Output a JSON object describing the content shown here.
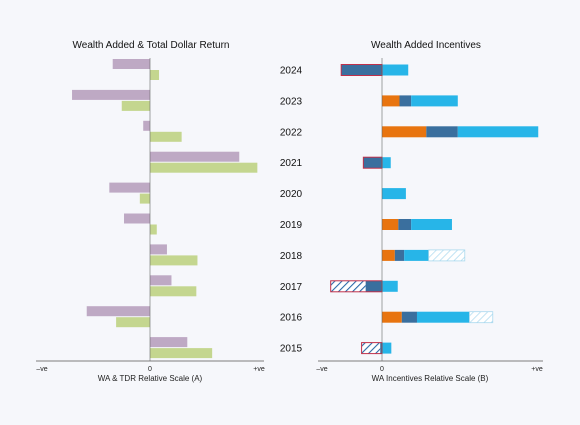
{
  "years": [
    "2024",
    "2023",
    "2022",
    "2021",
    "2020",
    "2019",
    "2018",
    "2017",
    "2016",
    "2015"
  ],
  "chart_data": [
    {
      "type": "bar",
      "title": "Wealth Added & Total Dollar Return",
      "xlabel": "WA & TDR Relative Scale (A)",
      "tick_labels": [
        "–ve",
        "0",
        "+ve"
      ],
      "xlim": [
        -1,
        1
      ],
      "categories": [
        "2024",
        "2023",
        "2022",
        "2021",
        "2020",
        "2019",
        "2018",
        "2017",
        "2016",
        "2015"
      ],
      "series": [
        {
          "color": "#bea9c4",
          "values": [
            -0.33,
            -0.69,
            -0.06,
            0.79,
            -0.36,
            -0.23,
            0.15,
            0.19,
            -0.56,
            0.33
          ]
        },
        {
          "color": "#c4d68f",
          "values": [
            0.08,
            -0.25,
            0.28,
            0.95,
            -0.09,
            0.06,
            0.42,
            0.41,
            -0.3,
            0.55
          ]
        }
      ]
    },
    {
      "type": "bar",
      "title": "Wealth Added Incentives",
      "xlabel": "WA Incentives Relative Scale (B)",
      "tick_labels": [
        "–ve",
        "0",
        "+ve"
      ],
      "xlim": [
        -1,
        2.5
      ],
      "categories": [
        "2024",
        "2023",
        "2022",
        "2021",
        "2020",
        "2019",
        "2018",
        "2017",
        "2016",
        "2015"
      ],
      "colors": {
        "orange": "#e8740f",
        "darkblue": "#3a6f9e",
        "lightblue": "#27b5e8",
        "hatch_blue": "#2a6aa8",
        "outline_red": "#c0304a",
        "hatch_light": "#a9d8ee"
      },
      "stacks": [
        {
          "year": "2024",
          "segments": [
            {
              "type": "darkblue",
              "start": -0.7,
              "end": 0,
              "outline": true
            },
            {
              "type": "lightblue",
              "start": 0,
              "end": 0.45
            }
          ]
        },
        {
          "year": "2023",
          "segments": [
            {
              "type": "orange",
              "start": 0,
              "end": 0.3
            },
            {
              "type": "darkblue",
              "start": 0.3,
              "end": 0.5
            },
            {
              "type": "lightblue",
              "start": 0.5,
              "end": 1.3
            }
          ]
        },
        {
          "year": "2022",
          "segments": [
            {
              "type": "orange",
              "start": 0,
              "end": 0.76
            },
            {
              "type": "darkblue",
              "start": 0.76,
              "end": 1.3
            },
            {
              "type": "lightblue",
              "start": 1.3,
              "end": 2.68
            }
          ]
        },
        {
          "year": "2021",
          "segments": [
            {
              "type": "darkblue",
              "start": -0.32,
              "end": 0,
              "outline": true
            },
            {
              "type": "lightblue",
              "start": 0,
              "end": 0.15
            }
          ]
        },
        {
          "year": "2020",
          "segments": [
            {
              "type": "lightblue",
              "start": 0,
              "end": 0.41
            }
          ]
        },
        {
          "year": "2019",
          "segments": [
            {
              "type": "orange",
              "start": 0,
              "end": 0.28
            },
            {
              "type": "darkblue",
              "start": 0.28,
              "end": 0.5
            },
            {
              "type": "lightblue",
              "start": 0.5,
              "end": 1.2
            }
          ]
        },
        {
          "year": "2018",
          "segments": [
            {
              "type": "orange",
              "start": 0,
              "end": 0.22
            },
            {
              "type": "darkblue",
              "start": 0.22,
              "end": 0.38
            },
            {
              "type": "lightblue",
              "start": 0.38,
              "end": 0.8
            },
            {
              "type": "hatch_light",
              "start": 0.8,
              "end": 1.42
            }
          ]
        },
        {
          "year": "2017",
          "segments": [
            {
              "type": "hatch_blue",
              "start": -0.88,
              "end": -0.28,
              "outline": true
            },
            {
              "type": "darkblue",
              "start": -0.28,
              "end": 0,
              "outline": true
            },
            {
              "type": "lightblue",
              "start": 0,
              "end": 0.27
            }
          ]
        },
        {
          "year": "2016",
          "segments": [
            {
              "type": "orange",
              "start": 0,
              "end": 0.34
            },
            {
              "type": "darkblue",
              "start": 0.34,
              "end": 0.6
            },
            {
              "type": "lightblue",
              "start": 0.6,
              "end": 1.5
            },
            {
              "type": "hatch_light",
              "start": 1.5,
              "end": 1.9
            }
          ]
        },
        {
          "year": "2015",
          "segments": [
            {
              "type": "hatch_blue",
              "start": -0.35,
              "end": -0.03,
              "outline": true
            },
            {
              "type": "darkblue",
              "start": -0.03,
              "end": 0,
              "outline": true
            },
            {
              "type": "lightblue",
              "start": 0,
              "end": 0.16
            }
          ]
        }
      ]
    }
  ]
}
